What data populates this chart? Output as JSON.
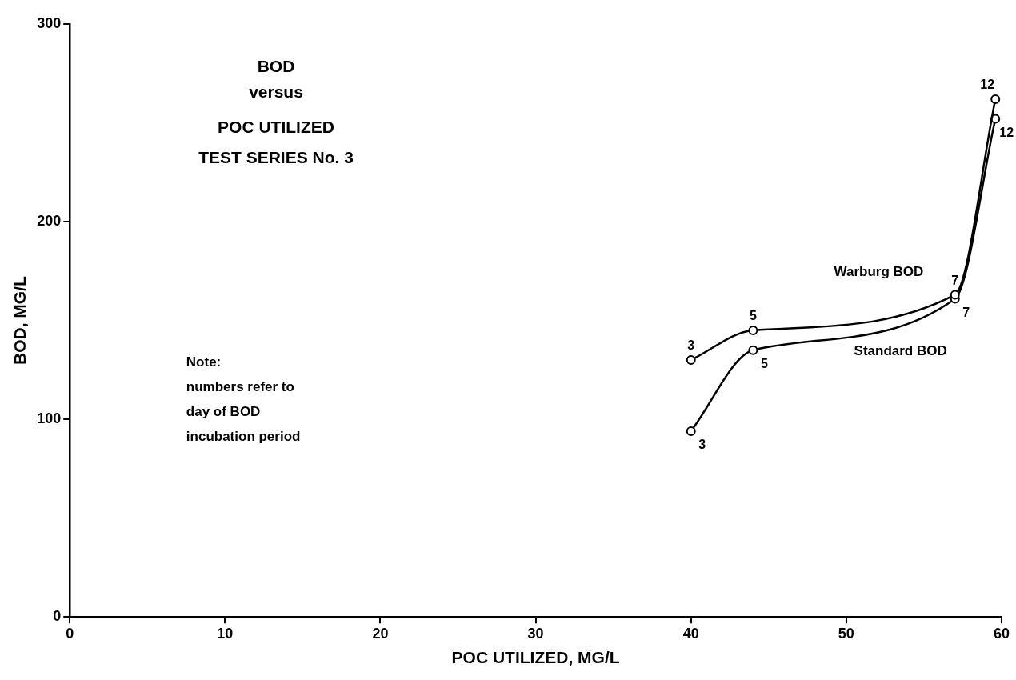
{
  "chart_data": {
    "type": "line",
    "title": "BOD\nversus\nPOC UTILIZED\nTEST SERIES No. 3",
    "xlabel": "POC UTILIZED, MG/L",
    "ylabel": "BOD, MG/L",
    "series": [
      {
        "name": "Warburg BOD",
        "color": "#000000",
        "x": [
          40,
          44,
          57,
          59.6
        ],
        "values": [
          130,
          145,
          163,
          262
        ]
      },
      {
        "name": "Standard BOD",
        "color": "#000000",
        "x": [
          40,
          44,
          57,
          59.6
        ],
        "values": [
          94,
          135,
          161,
          252
        ]
      }
    ],
    "xlim": [
      0,
      60
    ],
    "xticks": [
      0,
      10,
      20,
      30,
      40,
      50,
      60
    ],
    "ylim": [
      0,
      300
    ],
    "yticks": [
      0,
      100,
      200,
      300
    ],
    "grid": false,
    "legend": false,
    "marker": "circle",
    "line_style": "solid",
    "annotations": [
      {
        "text": "3",
        "x": 40,
        "y": 130
      },
      {
        "text": "5",
        "x": 44,
        "y": 145
      },
      {
        "text": "7",
        "x": 57,
        "y": 163
      },
      {
        "text": "12",
        "x": 59.6,
        "y": 262
      },
      {
        "text": "3",
        "x": 40,
        "y": 94
      },
      {
        "text": "5",
        "x": 44,
        "y": 135
      },
      {
        "text": "7",
        "x": 57,
        "y": 161
      },
      {
        "text": "12",
        "x": 59.6,
        "y": 252
      },
      "Note:\nnumbers refer to\nday of BOD\nincubation period"
    ]
  }
}
